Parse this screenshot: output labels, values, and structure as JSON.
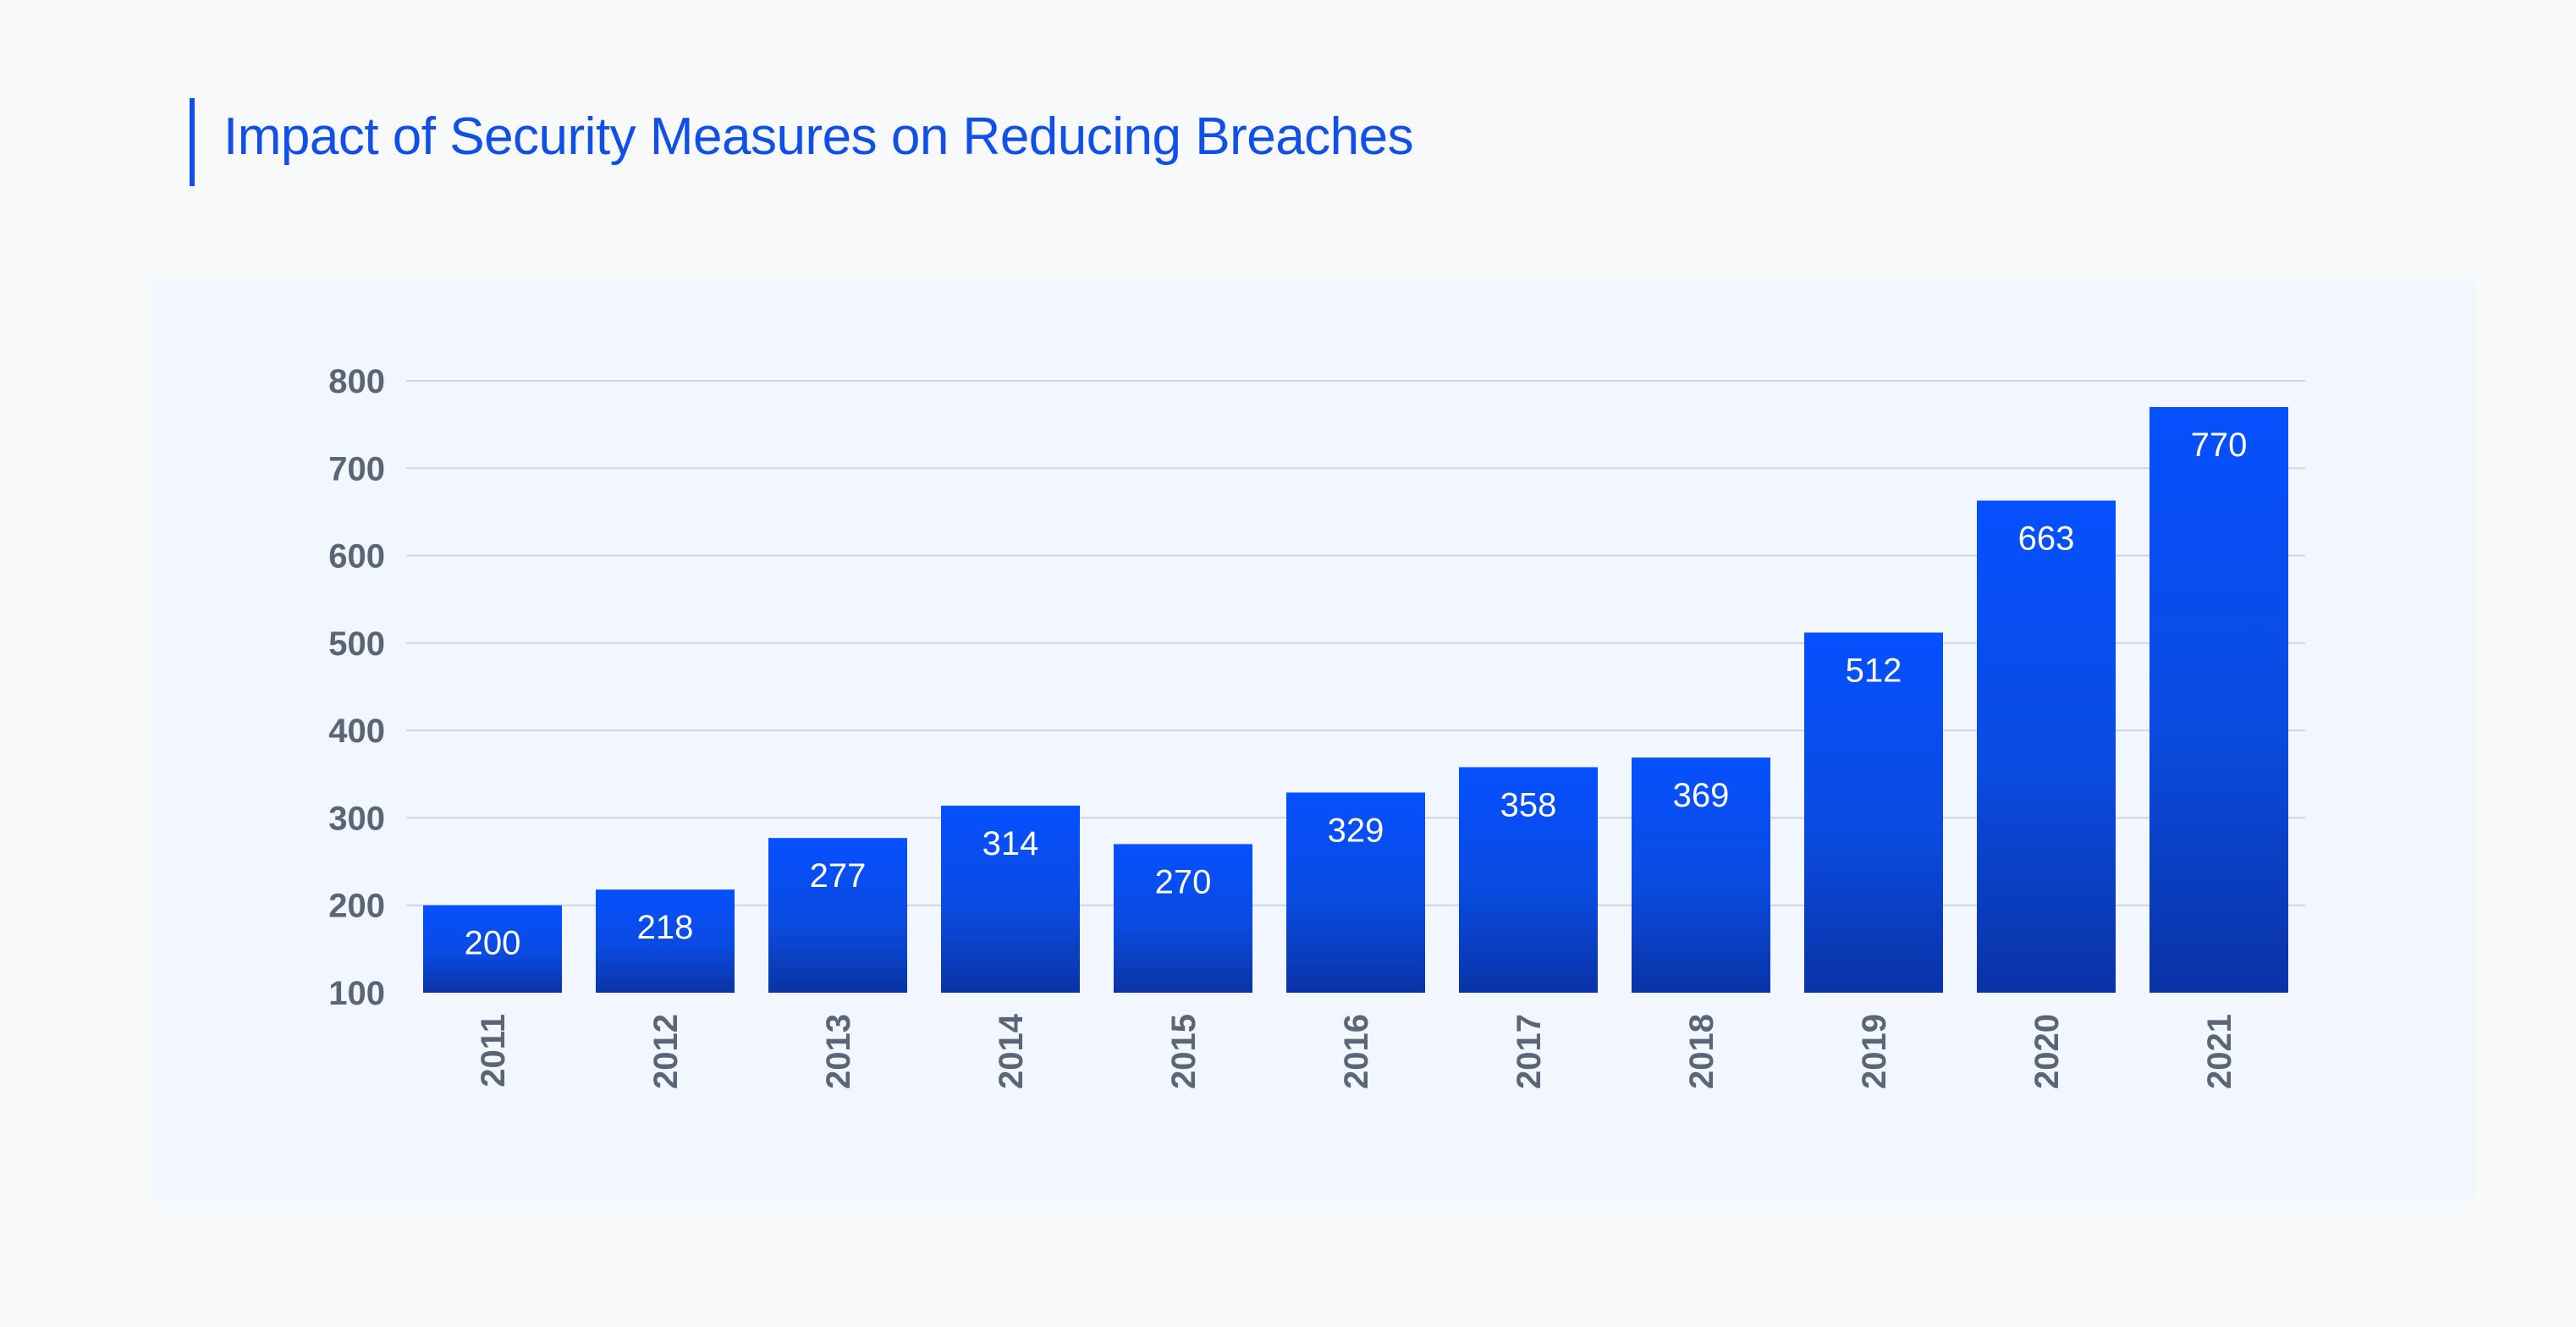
{
  "title": "Impact of Security Measures on Reducing Breaches",
  "colors": {
    "title": "#1050e8",
    "bar_top": "#0650ff",
    "bar_bottom": "#0a33a6",
    "grid": "#cfd6e2",
    "tick": "#5a6577",
    "panel": "#f1f6ff",
    "background": "#f8f9fa"
  },
  "chart_data": {
    "type": "bar",
    "title": "Impact of Security Measures on Reducing Breaches",
    "xlabel": "",
    "ylabel": "",
    "categories": [
      "2011",
      "2012",
      "2013",
      "2014",
      "2015",
      "2016",
      "2017",
      "2018",
      "2019",
      "2020",
      "2021"
    ],
    "values": [
      200,
      218,
      277,
      314,
      270,
      329,
      358,
      369,
      512,
      663,
      770
    ],
    "ylim": [
      100,
      800
    ],
    "yticks": [
      100,
      200,
      300,
      400,
      500,
      600,
      700,
      800
    ],
    "grid": true,
    "data_labels": true,
    "x_tick_rotation": "vertical"
  }
}
